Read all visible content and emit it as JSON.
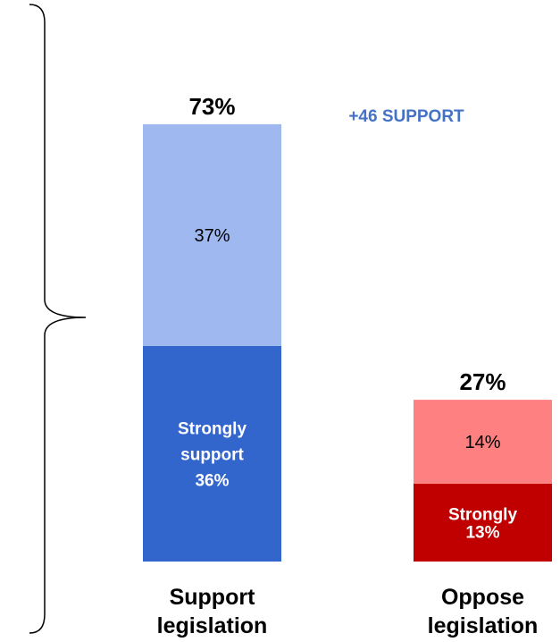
{
  "chart_data": {
    "type": "bar",
    "stacked": true,
    "ylim": [
      0,
      100
    ],
    "net_annotation": "+46 SUPPORT",
    "categories": [
      {
        "label_lines": [
          "Support",
          "legislation"
        ],
        "total_label": "73%",
        "segments": [
          {
            "value": 36,
            "label_lines": [
              "Strongly",
              "support",
              "36%"
            ],
            "color": "#3366cc",
            "text_color": "#ffffff",
            "bold": true
          },
          {
            "value": 37,
            "label_lines": [
              "37%"
            ],
            "color": "#9fb8ef",
            "text_color": "#000000",
            "bold": false
          }
        ]
      },
      {
        "label_lines": [
          "Oppose",
          "legislation"
        ],
        "total_label": "27%",
        "segments": [
          {
            "value": 13,
            "label_lines": [
              "Strongly",
              "13%"
            ],
            "color": "#c00000",
            "text_color": "#ffffff",
            "bold": true
          },
          {
            "value": 14,
            "label_lines": [
              "14%"
            ],
            "color": "#ff8080",
            "text_color": "#000000",
            "bold": false
          }
        ]
      }
    ]
  },
  "colors": {
    "net_annotation": "#4472c4",
    "bracket": "#000000"
  }
}
